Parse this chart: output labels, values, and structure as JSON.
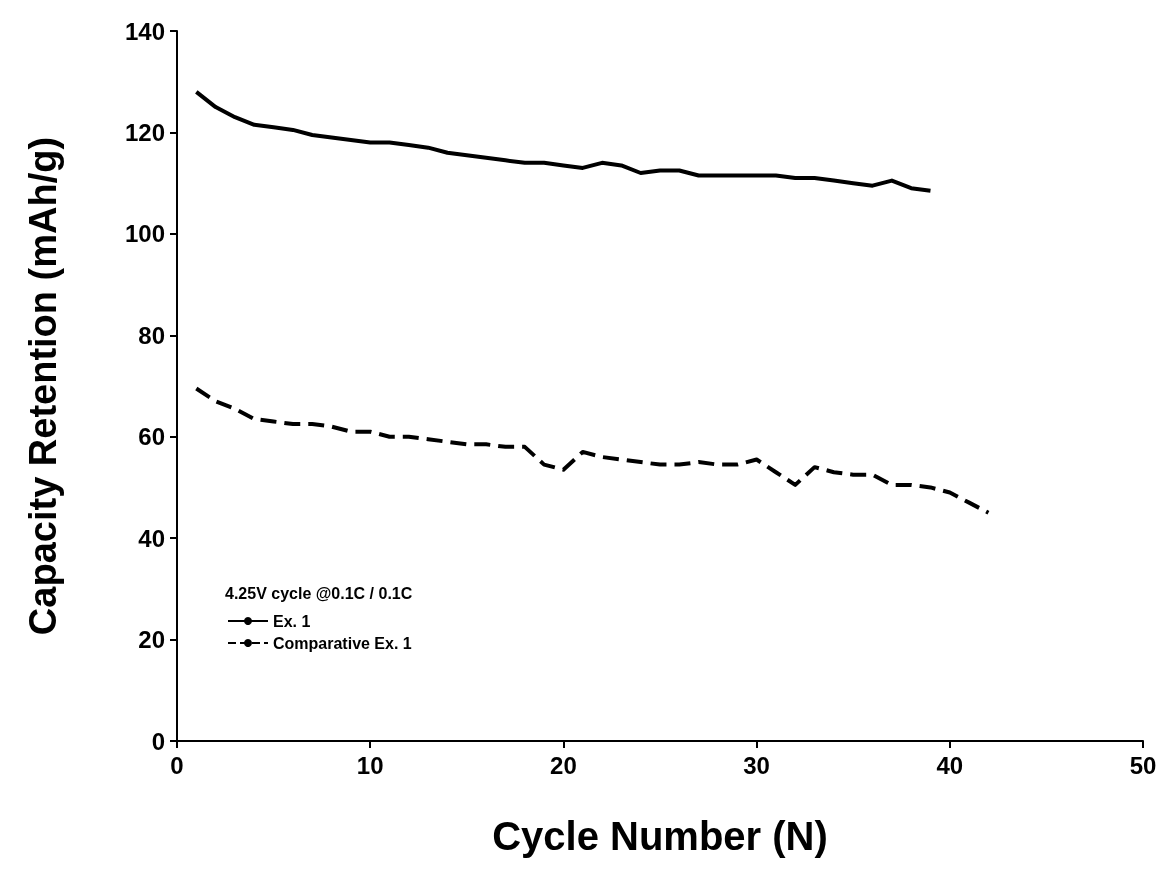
{
  "chart_data": {
    "type": "line",
    "xlabel": "Cycle Number (N)",
    "ylabel": "Capacity Retention (mAh/g)",
    "legend_title": "4.25V cycle @0.1C / 0.1C",
    "xlim": [
      0,
      50
    ],
    "xticks": [
      0,
      10,
      20,
      30,
      40,
      50
    ],
    "ylim": [
      0,
      140
    ],
    "yticks": [
      0,
      20,
      40,
      60,
      80,
      100,
      120,
      140
    ],
    "grid": false,
    "legend": "bottom left",
    "marker": "none",
    "series": [
      {
        "name": "Ex. 1",
        "color": "#000000",
        "line_style": "solid",
        "x": [
          1,
          2,
          3,
          4,
          5,
          6,
          7,
          8,
          9,
          10,
          11,
          12,
          13,
          14,
          15,
          16,
          17,
          18,
          19,
          20,
          21,
          22,
          23,
          24,
          25,
          26,
          27,
          28,
          29,
          30,
          31,
          32,
          33,
          34,
          35,
          36,
          37,
          38,
          39
        ],
        "values": [
          128,
          125,
          123,
          121.5,
          121,
          120.5,
          119.5,
          119,
          118.5,
          118,
          118,
          117.5,
          117,
          116,
          115.5,
          115,
          114.5,
          114,
          114,
          113.5,
          113,
          114,
          113.5,
          112,
          112.5,
          112.5,
          111.5,
          111.5,
          111.5,
          111.5,
          111.5,
          111,
          111,
          110.5,
          110,
          109.5,
          110.5,
          109,
          108.5
        ]
      },
      {
        "name": "Comparative Ex. 1",
        "color": "#000000",
        "line_style": "dashed",
        "x": [
          1,
          2,
          3,
          4,
          5,
          6,
          7,
          8,
          9,
          10,
          11,
          12,
          13,
          14,
          15,
          16,
          17,
          18,
          19,
          20,
          21,
          22,
          23,
          24,
          25,
          26,
          27,
          28,
          29,
          30,
          31,
          32,
          33,
          34,
          35,
          36,
          37,
          38,
          39,
          40,
          41,
          42
        ],
        "values": [
          69.5,
          67,
          65.5,
          63.5,
          63,
          62.5,
          62.5,
          62,
          61,
          61,
          60,
          60,
          59.5,
          59,
          58.5,
          58.5,
          58,
          58,
          54.5,
          53.5,
          57,
          56,
          55.5,
          55,
          54.5,
          54.5,
          55,
          54.5,
          54.5,
          55.5,
          53,
          50.5,
          54,
          53,
          52.5,
          52.5,
          50.5,
          50.5,
          50,
          49,
          47,
          45
        ]
      }
    ]
  }
}
